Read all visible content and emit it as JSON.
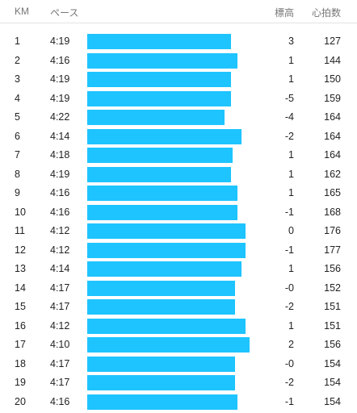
{
  "header": {
    "km_label": "KM",
    "pace_label": "ペース",
    "elevation_label": "標高",
    "heart_rate_label": "心拍数"
  },
  "colors": {
    "bar": "#1ec4ff",
    "text": "#222222",
    "header_text": "#777777"
  },
  "splits": [
    {
      "km": "1",
      "pace": "4:19",
      "elevation": "3",
      "heart_rate": "127",
      "pace_seconds": 259
    },
    {
      "km": "2",
      "pace": "4:16",
      "elevation": "1",
      "heart_rate": "144",
      "pace_seconds": 256
    },
    {
      "km": "3",
      "pace": "4:19",
      "elevation": "1",
      "heart_rate": "150",
      "pace_seconds": 259
    },
    {
      "km": "4",
      "pace": "4:19",
      "elevation": "-5",
      "heart_rate": "159",
      "pace_seconds": 259
    },
    {
      "km": "5",
      "pace": "4:22",
      "elevation": "-4",
      "heart_rate": "164",
      "pace_seconds": 262
    },
    {
      "km": "6",
      "pace": "4:14",
      "elevation": "-2",
      "heart_rate": "164",
      "pace_seconds": 254
    },
    {
      "km": "7",
      "pace": "4:18",
      "elevation": "1",
      "heart_rate": "164",
      "pace_seconds": 258
    },
    {
      "km": "8",
      "pace": "4:19",
      "elevation": "1",
      "heart_rate": "162",
      "pace_seconds": 259
    },
    {
      "km": "9",
      "pace": "4:16",
      "elevation": "1",
      "heart_rate": "165",
      "pace_seconds": 256
    },
    {
      "km": "10",
      "pace": "4:16",
      "elevation": "-1",
      "heart_rate": "168",
      "pace_seconds": 256
    },
    {
      "km": "11",
      "pace": "4:12",
      "elevation": "0",
      "heart_rate": "176",
      "pace_seconds": 252
    },
    {
      "km": "12",
      "pace": "4:12",
      "elevation": "-1",
      "heart_rate": "177",
      "pace_seconds": 252
    },
    {
      "km": "13",
      "pace": "4:14",
      "elevation": "1",
      "heart_rate": "156",
      "pace_seconds": 254
    },
    {
      "km": "14",
      "pace": "4:17",
      "elevation": "-0",
      "heart_rate": "152",
      "pace_seconds": 257
    },
    {
      "km": "15",
      "pace": "4:17",
      "elevation": "-2",
      "heart_rate": "151",
      "pace_seconds": 257
    },
    {
      "km": "16",
      "pace": "4:12",
      "elevation": "1",
      "heart_rate": "151",
      "pace_seconds": 252
    },
    {
      "km": "17",
      "pace": "4:10",
      "elevation": "2",
      "heart_rate": "156",
      "pace_seconds": 250
    },
    {
      "km": "18",
      "pace": "4:17",
      "elevation": "-0",
      "heart_rate": "154",
      "pace_seconds": 257
    },
    {
      "km": "19",
      "pace": "4:17",
      "elevation": "-2",
      "heart_rate": "154",
      "pace_seconds": 257
    },
    {
      "km": "20",
      "pace": "4:16",
      "elevation": "-1",
      "heart_rate": "154",
      "pace_seconds": 256
    }
  ]
}
